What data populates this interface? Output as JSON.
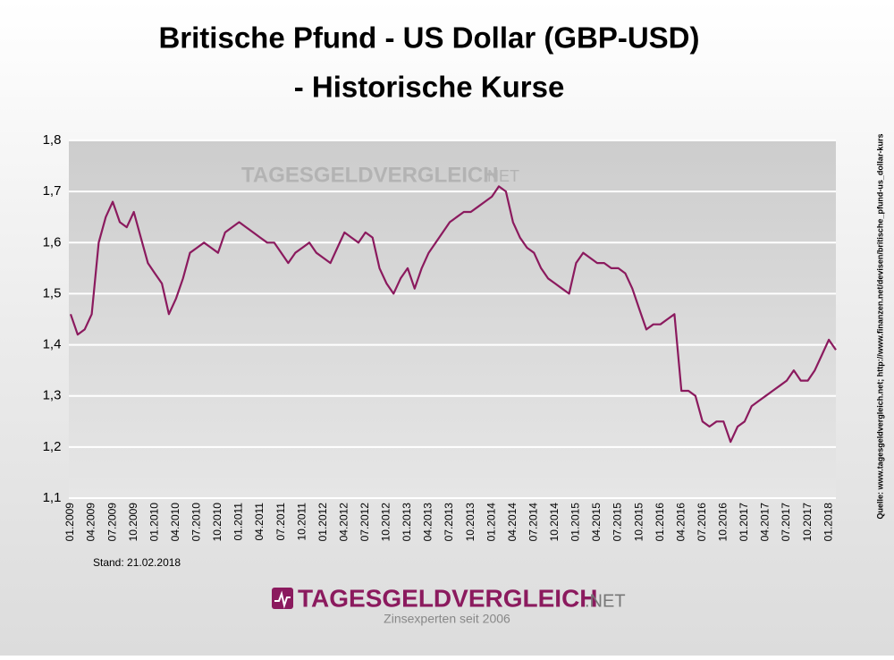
{
  "chart_data": {
    "type": "line",
    "title": "Britische Pfund - US Dollar (GBP-USD)",
    "subtitle": "- Historische Kurse",
    "source": "Quelle: www.tagesgeldvergleich.net; http://www.finanzen.net/devisen/britische_pfund-us_dollar-kurs",
    "note": "Stand: 21.02.2018",
    "logo": {
      "name": "TAGESGELDVERGLEICH",
      "suffix": ".NET",
      "slogan": "Zinsexperten seit 2006"
    },
    "categories": [
      "01.2009",
      null,
      null,
      "04.2009",
      null,
      null,
      "07.2009",
      null,
      null,
      "10.2009",
      null,
      null,
      "01.2010",
      null,
      null,
      "04.2010",
      null,
      null,
      "07.2010",
      null,
      null,
      "10.2010",
      null,
      null,
      "01.2011",
      null,
      null,
      "04.2011",
      null,
      null,
      "07.2011",
      null,
      null,
      "10.2011",
      null,
      null,
      "01.2012",
      null,
      null,
      "04.2012",
      null,
      null,
      "07.2012",
      null,
      null,
      "10.2012",
      null,
      null,
      "01.2013",
      null,
      null,
      "04.2013",
      null,
      null,
      "07.2013",
      null,
      null,
      "10.2013",
      null,
      null,
      "01.2014",
      null,
      null,
      "04.2014",
      null,
      null,
      "07.2014",
      null,
      null,
      "10.2014",
      null,
      null,
      "01.2015",
      null,
      null,
      "04.2015",
      null,
      null,
      "07.2015",
      null,
      null,
      "10.2015",
      null,
      null,
      "01.2016",
      null,
      null,
      "04.2016",
      null,
      null,
      "07.2016",
      null,
      null,
      "10.2016",
      null,
      null,
      "01.2017",
      null,
      null,
      "04.2017",
      null,
      null,
      "07.2017",
      null,
      null,
      "10.2017",
      null,
      null,
      "01.2018",
      null
    ],
    "series": [
      {
        "name": "GBP-USD",
        "color": "#8b1a5e",
        "values": [
          1.46,
          1.42,
          1.43,
          1.46,
          1.6,
          1.65,
          1.68,
          1.64,
          1.63,
          1.66,
          1.61,
          1.56,
          1.54,
          1.52,
          1.46,
          1.49,
          1.53,
          1.58,
          1.59,
          1.6,
          1.59,
          1.58,
          1.62,
          1.63,
          1.64,
          1.63,
          1.62,
          1.61,
          1.6,
          1.6,
          1.58,
          1.56,
          1.58,
          1.59,
          1.6,
          1.58,
          1.57,
          1.56,
          1.59,
          1.62,
          1.61,
          1.6,
          1.62,
          1.61,
          1.55,
          1.52,
          1.5,
          1.53,
          1.55,
          1.51,
          1.55,
          1.58,
          1.6,
          1.62,
          1.64,
          1.65,
          1.66,
          1.66,
          1.67,
          1.68,
          1.69,
          1.71,
          1.7,
          1.64,
          1.61,
          1.59,
          1.58,
          1.55,
          1.53,
          1.52,
          1.51,
          1.5,
          1.56,
          1.58,
          1.57,
          1.56,
          1.56,
          1.55,
          1.55,
          1.54,
          1.51,
          1.47,
          1.43,
          1.44,
          1.44,
          1.45,
          1.46,
          1.31,
          1.31,
          1.3,
          1.25,
          1.24,
          1.25,
          1.25,
          1.21,
          1.24,
          1.25,
          1.28,
          1.29,
          1.3,
          1.31,
          1.32,
          1.33,
          1.35,
          1.33,
          1.33,
          1.35,
          1.38,
          1.41,
          1.39
        ]
      }
    ],
    "ylim": [
      1.1,
      1.8
    ],
    "yticks": [
      {
        "value": 1.1,
        "label": "1,1"
      },
      {
        "value": 1.2,
        "label": "1,2"
      },
      {
        "value": 1.3,
        "label": "1,3"
      },
      {
        "value": 1.4,
        "label": "1,4"
      },
      {
        "value": 1.5,
        "label": "1,5"
      },
      {
        "value": 1.6,
        "label": "1,6"
      },
      {
        "value": 1.7,
        "label": "1,7"
      },
      {
        "value": 1.8,
        "label": "1,8"
      }
    ],
    "grid": true
  }
}
